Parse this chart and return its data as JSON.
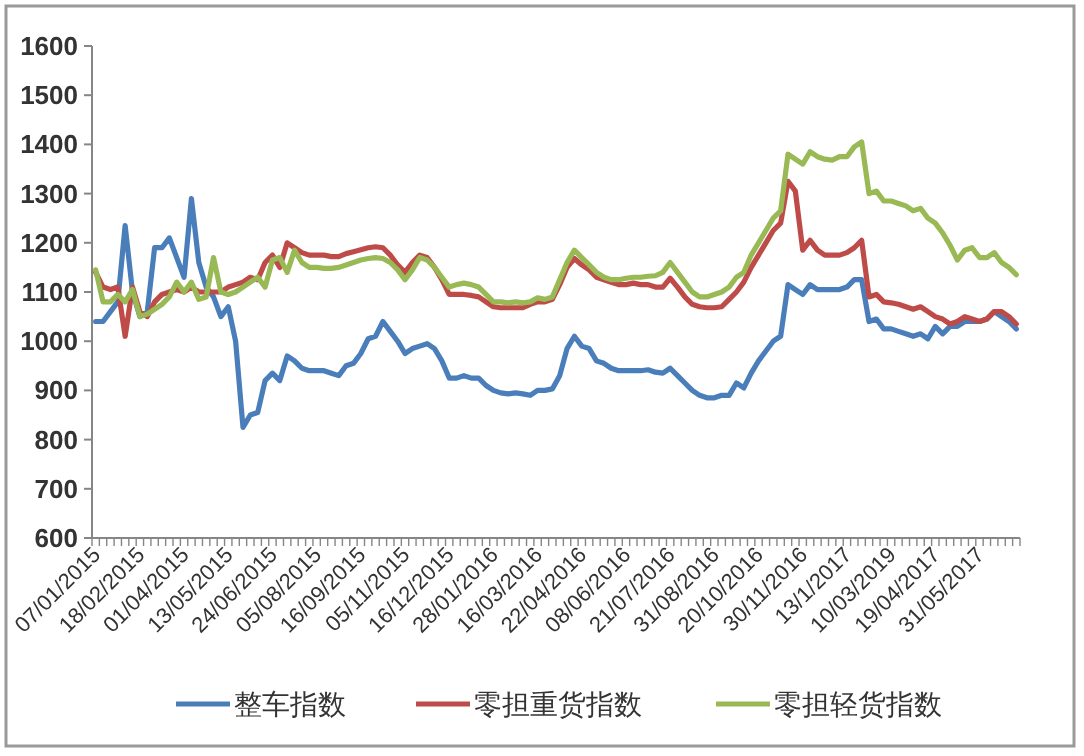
{
  "chart_data": {
    "type": "line",
    "categories": [
      "07/01/2015",
      null,
      null,
      null,
      null,
      null,
      "18/02/2015",
      null,
      null,
      null,
      null,
      null,
      "01/04/2015",
      null,
      null,
      null,
      null,
      null,
      "13/05/2015",
      null,
      null,
      null,
      null,
      null,
      "24/06/2015",
      null,
      null,
      null,
      null,
      null,
      "05/08/2015",
      null,
      null,
      null,
      null,
      null,
      "16/09/2015",
      null,
      null,
      null,
      null,
      null,
      "05/11/2015",
      null,
      null,
      null,
      null,
      null,
      "16/12/2015",
      null,
      null,
      null,
      null,
      null,
      "28/01/2016",
      null,
      null,
      null,
      null,
      null,
      "16/03/2016",
      null,
      null,
      null,
      null,
      null,
      "22/04/2016",
      null,
      null,
      null,
      null,
      null,
      "08/06/2016",
      null,
      null,
      null,
      null,
      null,
      "21/07/2016",
      null,
      null,
      null,
      null,
      null,
      "31/08/2016",
      null,
      null,
      null,
      null,
      null,
      "20/10/2016",
      null,
      null,
      null,
      null,
      null,
      "30/11/2016",
      null,
      null,
      null,
      null,
      null,
      "13/1/2017",
      null,
      null,
      null,
      null,
      null,
      "10/03/2019",
      null,
      null,
      null,
      null,
      null,
      "19/04/2017",
      null,
      null,
      null,
      null,
      null,
      "31/05/2017",
      null,
      null,
      null,
      null,
      null
    ],
    "series": [
      {
        "name": "整车指数",
        "color": "#4a7ebb",
        "values": [
          1040,
          1040,
          1060,
          1080,
          1235,
          1100,
          1050,
          1060,
          1190,
          1190,
          1210,
          1170,
          1130,
          1290,
          1160,
          1110,
          1090,
          1050,
          1070,
          1000,
          825,
          850,
          855,
          920,
          935,
          920,
          970,
          960,
          945,
          940,
          940,
          940,
          935,
          930,
          950,
          955,
          975,
          1005,
          1010,
          1040,
          1020,
          1000,
          975,
          985,
          990,
          995,
          985,
          960,
          925,
          925,
          930,
          925,
          925,
          910,
          900,
          895,
          893,
          895,
          893,
          890,
          900,
          900,
          903,
          930,
          985,
          1010,
          990,
          985,
          960,
          955,
          945,
          940,
          940,
          940,
          940,
          942,
          937,
          935,
          945,
          930,
          915,
          900,
          890,
          885,
          885,
          890,
          890,
          915,
          905,
          935,
          960,
          980,
          1000,
          1010,
          1115,
          1105,
          1095,
          1115,
          1105,
          1105,
          1105,
          1105,
          1110,
          1125,
          1125,
          1040,
          1045,
          1025,
          1025,
          1020,
          1015,
          1010,
          1015,
          1005,
          1030,
          1015,
          1030,
          1030,
          1040,
          1040,
          1040,
          1045,
          1060,
          1050,
          1040,
          1025
        ]
      },
      {
        "name": "零担重货指数",
        "color": "#be4b48",
        "values": [
          1140,
          1110,
          1105,
          1110,
          1010,
          1110,
          1060,
          1050,
          1080,
          1095,
          1100,
          1105,
          1100,
          1110,
          1100,
          1100,
          1100,
          1100,
          1110,
          1115,
          1120,
          1130,
          1125,
          1160,
          1175,
          1150,
          1200,
          1190,
          1180,
          1175,
          1175,
          1175,
          1172,
          1172,
          1178,
          1182,
          1186,
          1190,
          1192,
          1190,
          1175,
          1155,
          1140,
          1160,
          1175,
          1170,
          1150,
          1125,
          1095,
          1095,
          1095,
          1093,
          1090,
          1080,
          1070,
          1068,
          1068,
          1068,
          1068,
          1075,
          1080,
          1080,
          1085,
          1115,
          1150,
          1168,
          1155,
          1145,
          1130,
          1125,
          1120,
          1115,
          1115,
          1118,
          1115,
          1115,
          1110,
          1110,
          1128,
          1110,
          1090,
          1075,
          1070,
          1068,
          1068,
          1070,
          1085,
          1100,
          1120,
          1150,
          1175,
          1200,
          1225,
          1240,
          1325,
          1305,
          1185,
          1205,
          1185,
          1175,
          1175,
          1175,
          1180,
          1190,
          1205,
          1090,
          1095,
          1080,
          1078,
          1075,
          1070,
          1065,
          1070,
          1060,
          1050,
          1045,
          1035,
          1040,
          1050,
          1045,
          1040,
          1045,
          1060,
          1060,
          1050,
          1035
        ]
      },
      {
        "name": "零担轻货指数",
        "color": "#98b954",
        "values": [
          1145,
          1080,
          1080,
          1095,
          1080,
          1105,
          1050,
          1055,
          1065,
          1075,
          1090,
          1120,
          1100,
          1120,
          1085,
          1090,
          1170,
          1100,
          1095,
          1100,
          1110,
          1120,
          1130,
          1110,
          1165,
          1170,
          1140,
          1185,
          1160,
          1150,
          1150,
          1148,
          1148,
          1150,
          1155,
          1160,
          1165,
          1168,
          1170,
          1168,
          1160,
          1145,
          1125,
          1145,
          1170,
          1165,
          1150,
          1130,
          1110,
          1115,
          1118,
          1115,
          1110,
          1095,
          1080,
          1080,
          1078,
          1080,
          1078,
          1080,
          1088,
          1085,
          1090,
          1125,
          1160,
          1185,
          1170,
          1155,
          1140,
          1130,
          1125,
          1125,
          1128,
          1130,
          1130,
          1132,
          1133,
          1140,
          1160,
          1140,
          1120,
          1100,
          1090,
          1090,
          1095,
          1100,
          1110,
          1130,
          1140,
          1175,
          1200,
          1225,
          1250,
          1265,
          1380,
          1370,
          1360,
          1385,
          1375,
          1370,
          1368,
          1375,
          1375,
          1395,
          1405,
          1300,
          1305,
          1285,
          1285,
          1280,
          1275,
          1265,
          1270,
          1250,
          1240,
          1220,
          1195,
          1165,
          1185,
          1190,
          1170,
          1170,
          1180,
          1160,
          1150,
          1135
        ]
      }
    ],
    "ylim": [
      600,
      1600
    ],
    "yticks": [
      600,
      700,
      800,
      900,
      1000,
      1100,
      1200,
      1300,
      1400,
      1500,
      1600
    ],
    "legend": "bottom"
  }
}
